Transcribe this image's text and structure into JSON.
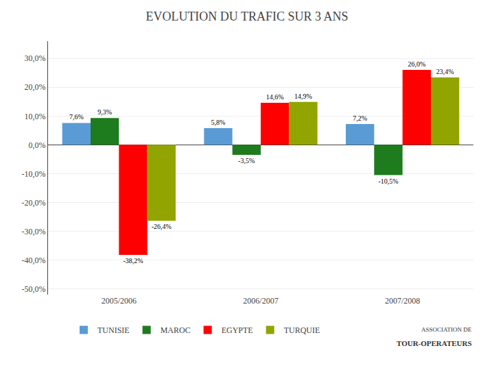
{
  "chart_data": {
    "type": "bar",
    "title": "EVOLUTION DU TRAFIC SUR 3 ANS",
    "categories": [
      "2005/2006",
      "2006/2007",
      "2007/2008"
    ],
    "series": [
      {
        "name": "TUNISIE",
        "color": "#5b9bd5",
        "values": [
          7.6,
          5.8,
          7.2
        ],
        "value_labels": [
          "7,6%",
          "5,8%",
          "7,2%"
        ]
      },
      {
        "name": "MAROC",
        "color": "#1e7b1e",
        "values": [
          9.3,
          -3.5,
          -10.5
        ],
        "value_labels": [
          "9,3%",
          "-3,5%",
          "-10,5%"
        ]
      },
      {
        "name": "EGYPTE",
        "color": "#ff0000",
        "values": [
          -38.2,
          14.6,
          26.0
        ],
        "value_labels": [
          "-38,2%",
          "14,6%",
          "26,0%"
        ]
      },
      {
        "name": "TURQUIE",
        "color": "#92a400",
        "values": [
          -26.4,
          14.9,
          23.4
        ],
        "value_labels": [
          "-26,4%",
          "14,9%",
          "23,4%"
        ]
      }
    ],
    "ylim": [
      -52,
      36
    ],
    "yticks": [
      {
        "value": -50,
        "label": "-50,0%"
      },
      {
        "value": -40,
        "label": "-40,0%"
      },
      {
        "value": -30,
        "label": "-30,0%"
      },
      {
        "value": -20,
        "label": "-20,0%"
      },
      {
        "value": -10,
        "label": "-10,0%"
      },
      {
        "value": 0,
        "label": "0,0%"
      },
      {
        "value": 10,
        "label": "10,0%"
      },
      {
        "value": 20,
        "label": "20,0%"
      },
      {
        "value": 30,
        "label": "30,0%"
      }
    ],
    "grid": true,
    "legend": "bottom",
    "data_labels": true,
    "annotations": [
      "ASSOCIATION DE",
      "TOUR-OPERATEURS"
    ]
  }
}
